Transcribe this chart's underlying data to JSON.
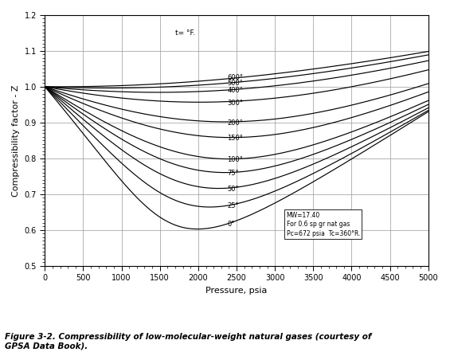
{
  "title": "Figure 3-2. Compressibility of low-molecular-weight natural gases (courtesy of\nGPSA Data Book).",
  "xlabel": "Pressure, psia",
  "ylabel": "Compressibility factor - Z",
  "xlim": [
    0,
    5000
  ],
  "ylim": [
    0.5,
    1.2
  ],
  "xticks": [
    0,
    500,
    1000,
    1500,
    2000,
    2500,
    3000,
    3500,
    4000,
    4500,
    5000
  ],
  "yticks": [
    0.5,
    0.6,
    0.7,
    0.8,
    0.9,
    1.0,
    1.1,
    1.2
  ],
  "temperatures": [
    600,
    500,
    400,
    300,
    200,
    150,
    100,
    75,
    50,
    25,
    0
  ],
  "annotation": "MW=17.40\nFor 0.6 sp gr nat gas\nPc=672 psia  Tc=360°R.",
  "label_text": "t= °F.",
  "bg_color": "#ffffff",
  "line_color": "#000000",
  "Pc": 672,
  "Tc_R": 360
}
